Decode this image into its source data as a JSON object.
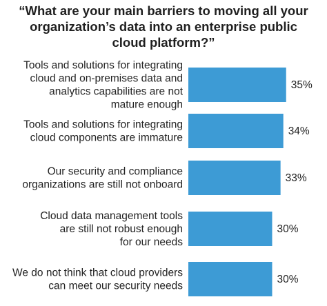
{
  "chart_data": {
    "type": "bar",
    "orientation": "horizontal",
    "title_lines": [
      "“What are your main barriers to moving all your",
      "organization’s data into an enterprise public",
      "cloud platform?”"
    ],
    "categories": [
      [
        "Tools and solutions for integrating",
        "cloud and on-premises data and",
        "analytics capabilities are not",
        "mature enough"
      ],
      [
        "Tools and solutions for integrating",
        "cloud components are immature"
      ],
      [
        "Our security and compliance",
        "organizations are still not onboard"
      ],
      [
        "Cloud data management tools",
        "are still not robust enough",
        "for our needs"
      ],
      [
        "We do not think that cloud providers",
        "can meet our security needs"
      ]
    ],
    "values": [
      35,
      34,
      33,
      30,
      30
    ],
    "value_labels": [
      "35%",
      "34%",
      "33%",
      "30%",
      "30%"
    ],
    "unit": "%",
    "bar_color": "#3d9bd5"
  }
}
